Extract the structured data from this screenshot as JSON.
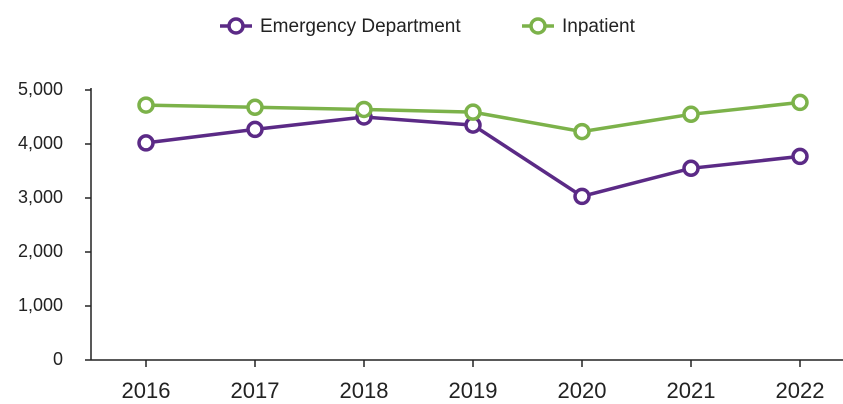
{
  "chart_data": {
    "type": "line",
    "categories": [
      "2016",
      "2017",
      "2018",
      "2019",
      "2020",
      "2021",
      "2022"
    ],
    "series": [
      {
        "name": "Emergency Department",
        "color": "#5b2a86",
        "values": [
          4020,
          4270,
          4500,
          4350,
          3030,
          3550,
          3770
        ]
      },
      {
        "name": "Inpatient",
        "color": "#7cb24a",
        "values": [
          4720,
          4680,
          4640,
          4590,
          4230,
          4550,
          4770
        ]
      }
    ],
    "ylim": [
      0,
      5000
    ],
    "yticks": [
      0,
      {
        "value": 1000,
        "label": "1,000"
      },
      {
        "value": 2000,
        "label": "2,000"
      },
      {
        "value": 3000,
        "label": "3,000"
      },
      {
        "value": 4000,
        "label": "4,000"
      },
      {
        "value": 5000,
        "label": "5,000"
      }
    ],
    "legend": "top"
  }
}
